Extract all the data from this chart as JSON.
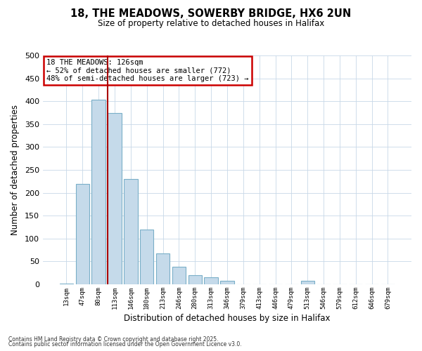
{
  "title": "18, THE MEADOWS, SOWERBY BRIDGE, HX6 2UN",
  "subtitle": "Size of property relative to detached houses in Halifax",
  "xlabel": "Distribution of detached houses by size in Halifax",
  "ylabel": "Number of detached properties",
  "bar_color": "#c5daea",
  "bar_edge_color": "#7aafc8",
  "background_color": "#ffffff",
  "grid_color": "#c8d8e8",
  "vline_color": "#aa0000",
  "annotation_text": "18 THE MEADOWS: 126sqm\n← 52% of detached houses are smaller (772)\n48% of semi-detached houses are larger (723) →",
  "annotation_box_color": "#ffffff",
  "annotation_box_edge_color": "#cc0000",
  "footnote1": "Contains HM Land Registry data © Crown copyright and database right 2025.",
  "footnote2": "Contains public sector information licensed under the Open Government Licence v3.0.",
  "bin_labels": [
    "13sqm",
    "47sqm",
    "80sqm",
    "113sqm",
    "146sqm",
    "180sqm",
    "213sqm",
    "246sqm",
    "280sqm",
    "313sqm",
    "346sqm",
    "379sqm",
    "413sqm",
    "446sqm",
    "479sqm",
    "513sqm",
    "546sqm",
    "579sqm",
    "612sqm",
    "646sqm",
    "679sqm"
  ],
  "bar_heights": [
    2,
    220,
    403,
    375,
    230,
    120,
    68,
    38,
    20,
    15,
    8,
    0,
    0,
    0,
    0,
    8,
    0,
    0,
    0,
    0,
    0
  ],
  "vline_bin_idx": 3,
  "ylim": [
    0,
    500
  ],
  "yticks": [
    0,
    50,
    100,
    150,
    200,
    250,
    300,
    350,
    400,
    450,
    500
  ]
}
